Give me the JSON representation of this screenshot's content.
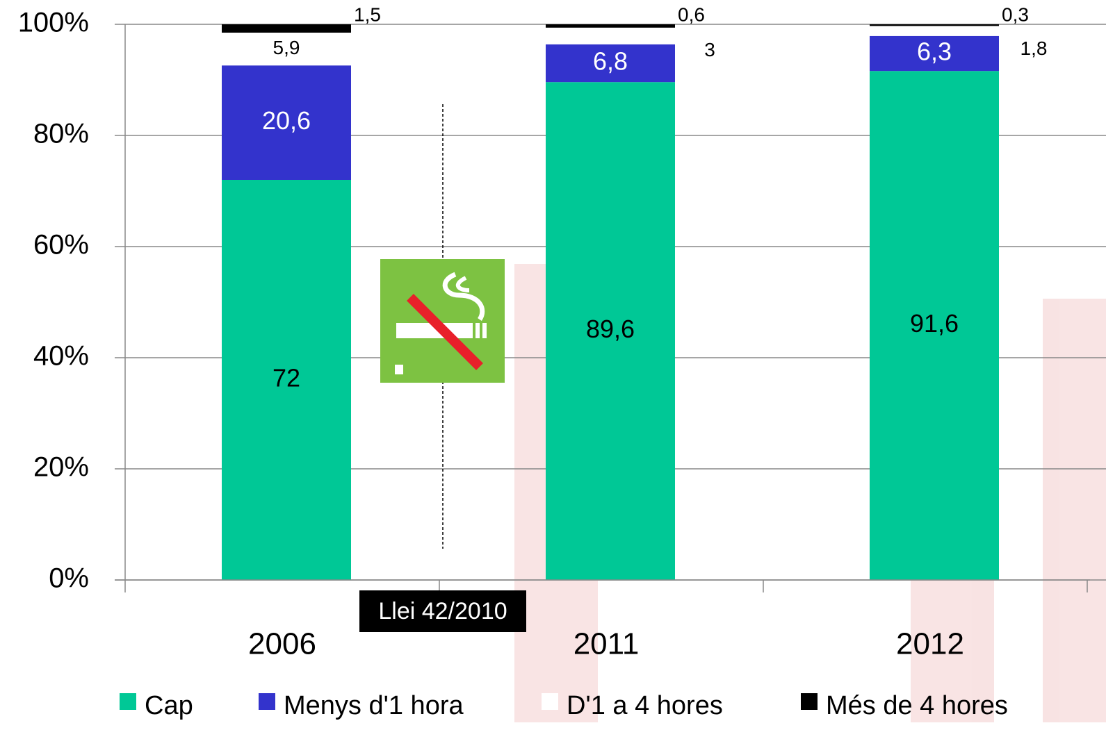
{
  "chart_data": {
    "type": "stacked-bar",
    "categories": [
      "2006",
      "2011",
      "2012"
    ],
    "series": [
      {
        "name": "Cap",
        "color": "#00c896",
        "values": [
          72,
          89.6,
          91.6
        ],
        "value_labels": [
          "72",
          "89,6",
          "91,6"
        ]
      },
      {
        "name": "Menys d'1 hora",
        "color": "#3333cc",
        "values": [
          20.6,
          6.8,
          6.3
        ],
        "value_labels": [
          "20,6",
          "6,8",
          "6,3"
        ]
      },
      {
        "name": "D'1 a 4 hores",
        "color": "#ffffff",
        "values": [
          5.9,
          3,
          1.8
        ],
        "value_labels": [
          "5,9",
          "3",
          "1,8"
        ]
      },
      {
        "name": "Més de 4 hores",
        "color": "#000000",
        "values": [
          1.5,
          0.6,
          0.3
        ],
        "value_labels": [
          "1,5",
          "0,6",
          "0,3"
        ]
      }
    ],
    "ylim": [
      0,
      100
    ],
    "yticks": [
      {
        "value": 0,
        "label": "0%"
      },
      {
        "value": 20,
        "label": "20%"
      },
      {
        "value": 40,
        "label": "40%"
      },
      {
        "value": 60,
        "label": "60%"
      },
      {
        "value": 80,
        "label": "80%"
      },
      {
        "value": 100,
        "label": "100%"
      }
    ],
    "grid": true,
    "annotations": [
      "Llei 42/2010"
    ]
  }
}
